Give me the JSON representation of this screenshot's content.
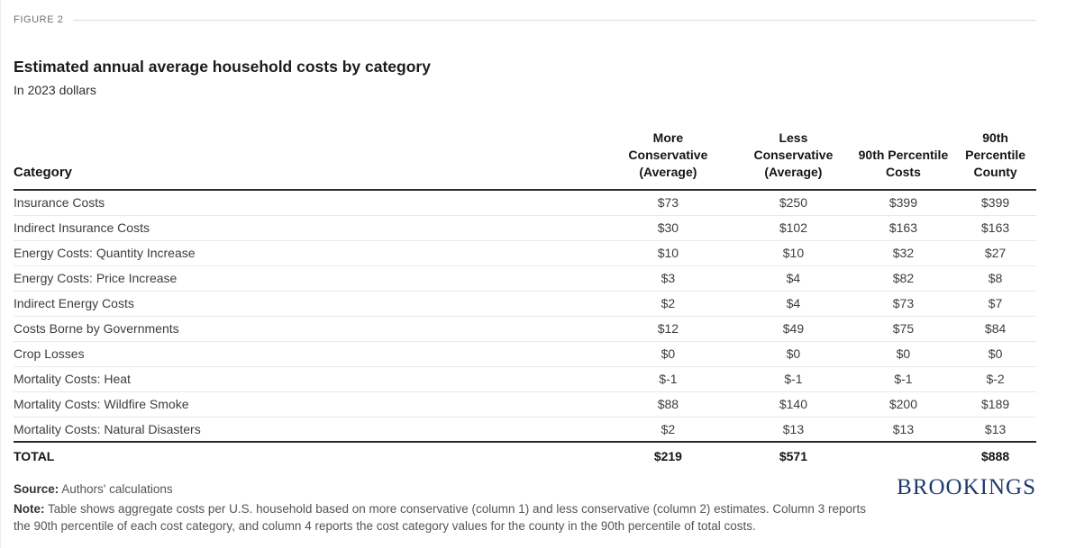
{
  "figure_label": "FIGURE 2",
  "title": "Estimated annual average household costs by category",
  "subtitle": "In 2023 dollars",
  "chart_data": {
    "type": "table",
    "title": "Estimated annual average household costs by category",
    "subtitle": "In 2023 dollars",
    "columns": [
      "Category",
      "More Conservative (Average)",
      "Less Conservative (Average)",
      "90th Percentile Costs",
      "90th Percentile County"
    ],
    "rows": [
      {
        "category": "Insurance Costs",
        "values": [
          "$73",
          "$250",
          "$399",
          "$399"
        ]
      },
      {
        "category": "Indirect Insurance Costs",
        "values": [
          "$30",
          "$102",
          "$163",
          "$163"
        ]
      },
      {
        "category": "Energy Costs: Quantity Increase",
        "values": [
          "$10",
          "$10",
          "$32",
          "$27"
        ]
      },
      {
        "category": "Energy Costs: Price Increase",
        "values": [
          "$3",
          "$4",
          "$82",
          "$8"
        ]
      },
      {
        "category": "Indirect Energy Costs",
        "values": [
          "$2",
          "$4",
          "$73",
          "$7"
        ]
      },
      {
        "category": "Costs Borne by Governments",
        "values": [
          "$12",
          "$49",
          "$75",
          "$84"
        ]
      },
      {
        "category": "Crop Losses",
        "values": [
          "$0",
          "$0",
          "$0",
          "$0"
        ]
      },
      {
        "category": "Mortality Costs: Heat",
        "values": [
          "$-1",
          "$-1",
          "$-1",
          "$-2"
        ]
      },
      {
        "category": "Mortality Costs: Wildfire Smoke",
        "values": [
          "$88",
          "$140",
          "$200",
          "$189"
        ]
      },
      {
        "category": "Mortality Costs: Natural Disasters",
        "values": [
          "$2",
          "$13",
          "$13",
          "$13"
        ]
      }
    ],
    "total": {
      "label": "TOTAL",
      "values": [
        "$219",
        "$571",
        "",
        "$888"
      ]
    }
  },
  "footer": {
    "source_label": "Source:",
    "source_text": "Authors' calculations",
    "note_label": "Note:",
    "note_text": "Table shows aggregate costs per U.S. household based on more conservative (column 1) and less conservative (column 2) estimates. Column 3 reports the 90th percentile of each cost category, and column 4 reports the cost category values for the county in the 90th percentile of total costs.",
    "logo_text": "BROOKINGS"
  },
  "colors": {
    "brand_logo": "#1d3c6b",
    "heavy_rule": "#2b2b2b",
    "row_separator": "#e9e9e9",
    "figure_label_gray": "#6f6f6f"
  }
}
